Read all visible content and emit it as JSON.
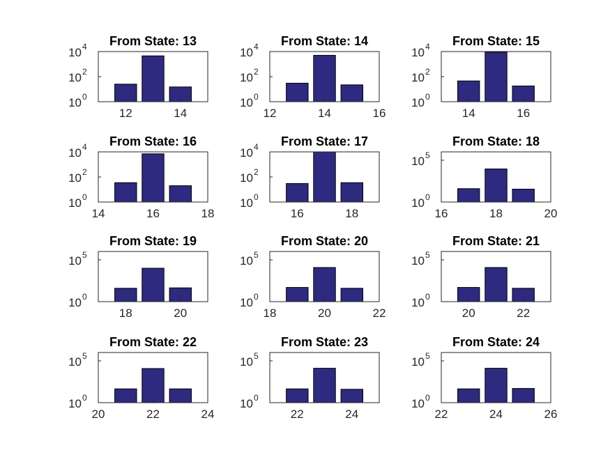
{
  "figure": {
    "background": "#ffffff",
    "bar_color": "#2d2a80",
    "axis_color": "#262626"
  },
  "chart_data": [
    {
      "type": "bar",
      "title": "From State: 13",
      "yscale": "log",
      "categories": [
        12,
        13,
        14
      ],
      "values": [
        25,
        4500,
        15
      ],
      "xlim": [
        11,
        15
      ],
      "xticks": [
        12,
        14
      ],
      "ylim_exp": [
        0,
        4
      ],
      "yticks_exp": [
        0,
        2,
        4
      ]
    },
    {
      "type": "bar",
      "title": "From State: 14",
      "yscale": "log",
      "categories": [
        13,
        14,
        15
      ],
      "values": [
        30,
        5000,
        22
      ],
      "xlim": [
        12,
        16
      ],
      "xticks": [
        12,
        14,
        16
      ],
      "ylim_exp": [
        0,
        4
      ],
      "yticks_exp": [
        0,
        2,
        4
      ]
    },
    {
      "type": "bar",
      "title": "From State: 15",
      "yscale": "log",
      "categories": [
        14,
        15,
        16
      ],
      "values": [
        45,
        9000,
        18
      ],
      "xlim": [
        13,
        17
      ],
      "xticks": [
        14,
        16
      ],
      "ylim_exp": [
        0,
        4
      ],
      "yticks_exp": [
        0,
        2,
        4
      ]
    },
    {
      "type": "bar",
      "title": "From State: 16",
      "yscale": "log",
      "categories": [
        15,
        16,
        17
      ],
      "values": [
        35,
        7000,
        20
      ],
      "xlim": [
        14,
        18
      ],
      "xticks": [
        14,
        16,
        18
      ],
      "ylim_exp": [
        0,
        4
      ],
      "yticks_exp": [
        0,
        2,
        4
      ]
    },
    {
      "type": "bar",
      "title": "From State: 17",
      "yscale": "log",
      "categories": [
        16,
        17,
        18
      ],
      "values": [
        30,
        10000,
        35
      ],
      "xlim": [
        15,
        19
      ],
      "xticks": [
        16,
        18
      ],
      "ylim_exp": [
        0,
        4
      ],
      "yticks_exp": [
        0,
        2,
        4
      ]
    },
    {
      "type": "bar",
      "title": "From State: 18",
      "yscale": "log",
      "categories": [
        17,
        18,
        19
      ],
      "values": [
        40,
        9000,
        35
      ],
      "xlim": [
        16,
        20
      ],
      "xticks": [
        16,
        18,
        20
      ],
      "ylim_exp": [
        0,
        6
      ],
      "yticks_exp": [
        0,
        5
      ]
    },
    {
      "type": "bar",
      "title": "From State: 19",
      "yscale": "log",
      "categories": [
        18,
        19,
        20
      ],
      "values": [
        40,
        10000,
        45
      ],
      "xlim": [
        17,
        21
      ],
      "xticks": [
        18,
        20
      ],
      "ylim_exp": [
        0,
        6
      ],
      "yticks_exp": [
        0,
        5
      ]
    },
    {
      "type": "bar",
      "title": "From State: 20",
      "yscale": "log",
      "categories": [
        19,
        20,
        21
      ],
      "values": [
        50,
        12000,
        40
      ],
      "xlim": [
        18,
        22
      ],
      "xticks": [
        18,
        20,
        22
      ],
      "ylim_exp": [
        0,
        6
      ],
      "yticks_exp": [
        0,
        5
      ]
    },
    {
      "type": "bar",
      "title": "From State: 21",
      "yscale": "log",
      "categories": [
        20,
        21,
        22
      ],
      "values": [
        50,
        12000,
        40
      ],
      "xlim": [
        19,
        23
      ],
      "xticks": [
        20,
        22
      ],
      "ylim_exp": [
        0,
        6
      ],
      "yticks_exp": [
        0,
        5
      ]
    },
    {
      "type": "bar",
      "title": "From State: 22",
      "yscale": "log",
      "categories": [
        21,
        22,
        23
      ],
      "values": [
        45,
        12000,
        45
      ],
      "xlim": [
        20,
        24
      ],
      "xticks": [
        20,
        22,
        24
      ],
      "ylim_exp": [
        0,
        6
      ],
      "yticks_exp": [
        0,
        5
      ]
    },
    {
      "type": "bar",
      "title": "From State: 23",
      "yscale": "log",
      "categories": [
        22,
        23,
        24
      ],
      "values": [
        45,
        13000,
        40
      ],
      "xlim": [
        21,
        25
      ],
      "xticks": [
        22,
        24
      ],
      "ylim_exp": [
        0,
        6
      ],
      "yticks_exp": [
        0,
        5
      ]
    },
    {
      "type": "bar",
      "title": "From State: 24",
      "yscale": "log",
      "categories": [
        23,
        24,
        25
      ],
      "values": [
        45,
        13000,
        50
      ],
      "xlim": [
        22,
        26
      ],
      "xticks": [
        22,
        24,
        26
      ],
      "ylim_exp": [
        0,
        6
      ],
      "yticks_exp": [
        0,
        5
      ]
    }
  ]
}
